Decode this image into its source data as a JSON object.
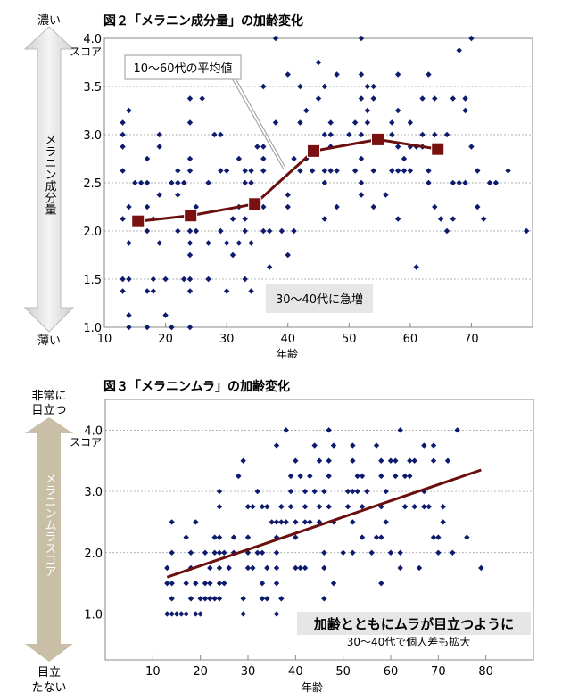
{
  "colors": {
    "point": "#0d1a6e",
    "line": "#6b0e0e",
    "marker": "#7a1010",
    "grid": "#9a9a9a",
    "arrow": "#c9bfa6",
    "label_box": "#e6e6e6"
  },
  "chart_data": [
    {
      "type": "scatter",
      "title": "図２「メラニン成分量」の加齢変化",
      "xlabel": "年齢",
      "ylabel": "メラニン成分量",
      "y_unit": "スコア",
      "y_top_label": "濃い",
      "y_bottom_label": "薄い",
      "xlim": [
        10,
        80
      ],
      "ylim": [
        1.0,
        4.0
      ],
      "x_ticks": [
        "10",
        "20",
        "30",
        "40",
        "50",
        "60",
        "70"
      ],
      "y_ticks": [
        "1.0",
        "1.5",
        "2.0",
        "2.5",
        "3.0",
        "3.5",
        "4.0"
      ],
      "grid": "horizontal dashed",
      "points": [
        [
          13,
          3.125
        ],
        [
          13,
          3.0
        ],
        [
          13,
          2.875
        ],
        [
          13,
          2.625
        ],
        [
          13,
          2.125
        ],
        [
          13,
          1.5
        ],
        [
          13,
          1.375
        ],
        [
          14,
          3.25
        ],
        [
          14,
          2.25
        ],
        [
          14,
          1.875
        ],
        [
          14,
          1.5
        ],
        [
          14,
          1.125
        ],
        [
          14,
          1.0
        ],
        [
          15,
          2.5
        ],
        [
          16,
          2.5
        ],
        [
          17,
          2.75
        ],
        [
          17,
          2.5
        ],
        [
          17,
          2.25
        ],
        [
          17,
          2.0
        ],
        [
          17,
          1.375
        ],
        [
          17,
          1.0
        ],
        [
          18,
          2.125
        ],
        [
          18,
          1.5
        ],
        [
          18,
          1.375
        ],
        [
          19,
          3.0
        ],
        [
          19,
          2.875
        ],
        [
          19,
          2.375
        ],
        [
          19,
          1.875
        ],
        [
          20,
          1.5
        ],
        [
          20,
          1.125
        ],
        [
          21,
          2.5
        ],
        [
          21,
          1.0
        ],
        [
          22,
          2.625
        ],
        [
          22,
          2.5
        ],
        [
          22,
          2.375
        ],
        [
          22,
          2.0
        ],
        [
          23,
          2.5
        ],
        [
          23,
          1.5
        ],
        [
          24,
          3.375
        ],
        [
          24,
          3.125
        ],
        [
          24,
          2.75
        ],
        [
          24,
          2.625
        ],
        [
          24,
          2.0
        ],
        [
          24,
          1.875
        ],
        [
          24,
          1.75
        ],
        [
          24,
          1.5
        ],
        [
          24,
          1.375
        ],
        [
          24,
          1.0
        ],
        [
          25,
          2.25
        ],
        [
          25,
          2.0
        ],
        [
          26,
          3.375
        ],
        [
          27,
          2.5
        ],
        [
          27,
          1.875
        ],
        [
          27,
          1.5
        ],
        [
          28,
          3.0
        ],
        [
          29,
          3.0
        ],
        [
          29,
          2.625
        ],
        [
          29,
          2.0
        ],
        [
          30,
          2.625
        ],
        [
          30,
          1.875
        ],
        [
          30,
          1.375
        ],
        [
          31,
          2.125
        ],
        [
          31,
          1.75
        ],
        [
          32,
          2.75
        ],
        [
          32,
          2.25
        ],
        [
          32,
          1.875
        ],
        [
          33,
          2.625
        ],
        [
          33,
          2.5
        ],
        [
          33,
          2.125
        ],
        [
          33,
          2.0
        ],
        [
          33,
          1.5
        ],
        [
          34,
          2.625
        ],
        [
          34,
          2.5
        ],
        [
          34,
          1.875
        ],
        [
          34,
          1.375
        ],
        [
          35,
          2.875
        ],
        [
          36,
          3.5
        ],
        [
          36,
          2.875
        ],
        [
          36,
          2.75
        ],
        [
          36,
          2.625
        ],
        [
          36,
          2.25
        ],
        [
          36,
          2.0
        ],
        [
          37,
          2.0
        ],
        [
          37,
          1.625
        ],
        [
          38,
          4.0
        ],
        [
          38,
          3.125
        ],
        [
          39,
          2.0
        ],
        [
          40,
          3.625
        ],
        [
          40,
          2.375
        ],
        [
          40,
          2.25
        ],
        [
          40,
          1.75
        ],
        [
          41,
          2.75
        ],
        [
          41,
          2.0
        ],
        [
          42,
          3.5
        ],
        [
          42,
          3.125
        ],
        [
          42,
          2.625
        ],
        [
          43,
          3.25
        ],
        [
          43,
          2.75
        ],
        [
          44,
          2.625
        ],
        [
          45,
          3.75
        ],
        [
          45,
          3.375
        ],
        [
          46,
          3.5
        ],
        [
          46,
          3.0
        ],
        [
          46,
          2.625
        ],
        [
          46,
          2.5
        ],
        [
          46,
          2.125
        ],
        [
          47,
          3.125
        ],
        [
          47,
          3.0
        ],
        [
          47,
          2.875
        ],
        [
          47,
          2.625
        ],
        [
          48,
          3.625
        ],
        [
          48,
          2.625
        ],
        [
          48,
          2.25
        ],
        [
          50,
          3.0
        ],
        [
          51,
          3.125
        ],
        [
          51,
          2.625
        ],
        [
          52,
          4.0
        ],
        [
          52,
          3.625
        ],
        [
          52,
          3.375
        ],
        [
          52,
          3.0
        ],
        [
          52,
          2.75
        ],
        [
          52,
          2.5
        ],
        [
          52,
          2.375
        ],
        [
          53,
          3.5
        ],
        [
          53,
          3.25
        ],
        [
          53,
          3.125
        ],
        [
          54,
          3.5
        ],
        [
          54,
          3.375
        ],
        [
          54,
          2.625
        ],
        [
          54,
          2.25
        ],
        [
          56,
          2.375
        ],
        [
          57,
          3.125
        ],
        [
          57,
          3.0
        ],
        [
          57,
          2.625
        ],
        [
          58,
          3.625
        ],
        [
          58,
          3.25
        ],
        [
          58,
          2.875
        ],
        [
          58,
          2.625
        ],
        [
          58,
          2.125
        ],
        [
          59,
          2.75
        ],
        [
          59,
          2.625
        ],
        [
          60,
          3.125
        ],
        [
          60,
          2.875
        ],
        [
          60,
          2.625
        ],
        [
          61,
          2.875
        ],
        [
          61,
          1.625
        ],
        [
          62,
          3.375
        ],
        [
          62,
          3.0
        ],
        [
          62,
          2.875
        ],
        [
          63,
          3.625
        ],
        [
          63,
          2.625
        ],
        [
          63,
          2.5
        ],
        [
          64,
          3.375
        ],
        [
          64,
          3.0
        ],
        [
          64,
          2.25
        ],
        [
          65,
          2.125
        ],
        [
          66,
          3.0
        ],
        [
          66,
          2.0
        ],
        [
          67,
          3.375
        ],
        [
          67,
          2.5
        ],
        [
          67,
          2.125
        ],
        [
          68,
          3.875
        ],
        [
          68,
          2.5
        ],
        [
          69,
          3.375
        ],
        [
          69,
          3.25
        ],
        [
          69,
          2.5
        ],
        [
          70,
          4.0
        ],
        [
          70,
          2.875
        ],
        [
          71,
          2.625
        ],
        [
          71,
          2.25
        ],
        [
          72,
          2.125
        ],
        [
          73,
          2.5
        ],
        [
          74,
          2.5
        ],
        [
          76,
          2.625
        ],
        [
          79,
          2.0
        ]
      ],
      "mean_series": {
        "name": "10～60代の平均値",
        "x": [
          15.5,
          24.1,
          34.6,
          44.2,
          54.7,
          64.5
        ],
        "y": [
          2.1,
          2.16,
          2.28,
          2.83,
          2.95,
          2.85
        ]
      },
      "annotations": [
        "30～40代に急増"
      ]
    },
    {
      "type": "scatter",
      "title": "図３「メラニンムラ」の加齢変化",
      "xlabel": "年齢",
      "ylabel": "メラニンムラスコア",
      "y_unit": "スコア",
      "y_top_label": [
        "非常に",
        "目立つ"
      ],
      "y_bottom_label": [
        "目立",
        "たない"
      ],
      "xlim": [
        0,
        90
      ],
      "ylim": [
        0.25,
        4.5
      ],
      "x_ticks": [
        "10",
        "20",
        "30",
        "40",
        "50",
        "60",
        "70",
        "80"
      ],
      "y_ticks": [
        "1.0",
        "2.0",
        "3.0",
        "4.0"
      ],
      "grid": "horizontal dashed",
      "points": [
        [
          13,
          1.75
        ],
        [
          13,
          1.5
        ],
        [
          13,
          1.0
        ],
        [
          14,
          2.5
        ],
        [
          14,
          2.0
        ],
        [
          14,
          1.5
        ],
        [
          14,
          1.25
        ],
        [
          14,
          1.0
        ],
        [
          15,
          1.0
        ],
        [
          16,
          1.0
        ],
        [
          17,
          2.25
        ],
        [
          17,
          1.5
        ],
        [
          17,
          1.0
        ],
        [
          18,
          2.0
        ],
        [
          18,
          1.75
        ],
        [
          18,
          1.25
        ],
        [
          19,
          2.5
        ],
        [
          19,
          1.5
        ],
        [
          19,
          1.0
        ],
        [
          20,
          1.25
        ],
        [
          20,
          1.0
        ],
        [
          21,
          2.0
        ],
        [
          21,
          1.5
        ],
        [
          21,
          1.25
        ],
        [
          22,
          1.75
        ],
        [
          22,
          1.5
        ],
        [
          22,
          1.25
        ],
        [
          23,
          2.25
        ],
        [
          23,
          2.0
        ],
        [
          23,
          1.25
        ],
        [
          24,
          3.0
        ],
        [
          24,
          2.75
        ],
        [
          24,
          2.25
        ],
        [
          24,
          2.0
        ],
        [
          24,
          1.75
        ],
        [
          24,
          1.5
        ],
        [
          24,
          1.25
        ],
        [
          25,
          2.0
        ],
        [
          25,
          1.5
        ],
        [
          26,
          1.75
        ],
        [
          27,
          2.25
        ],
        [
          27,
          2.0
        ],
        [
          28,
          3.25
        ],
        [
          29,
          3.5
        ],
        [
          29,
          1.25
        ],
        [
          29,
          1.0
        ],
        [
          30,
          2.75
        ],
        [
          30,
          2.25
        ],
        [
          30,
          2.0
        ],
        [
          30,
          1.75
        ],
        [
          31,
          2.75
        ],
        [
          31,
          1.75
        ],
        [
          32,
          3.0
        ],
        [
          32,
          2.0
        ],
        [
          33,
          2.75
        ],
        [
          33,
          2.0
        ],
        [
          33,
          1.5
        ],
        [
          33,
          1.25
        ],
        [
          34,
          2.75
        ],
        [
          34,
          1.75
        ],
        [
          34,
          1.25
        ],
        [
          35,
          2.5
        ],
        [
          36,
          3.75
        ],
        [
          36,
          2.5
        ],
        [
          36,
          2.25
        ],
        [
          36,
          2.0
        ],
        [
          36,
          1.75
        ],
        [
          36,
          1.5
        ],
        [
          36,
          1.0
        ],
        [
          37,
          2.75
        ],
        [
          37,
          2.5
        ],
        [
          37,
          1.25
        ],
        [
          38,
          4.0
        ],
        [
          38,
          2.5
        ],
        [
          39,
          3.25
        ],
        [
          39,
          3.0
        ],
        [
          39,
          2.75
        ],
        [
          40,
          3.5
        ],
        [
          40,
          2.5
        ],
        [
          40,
          2.25
        ],
        [
          40,
          1.75
        ],
        [
          41,
          3.25
        ],
        [
          41,
          1.75
        ],
        [
          42,
          3.0
        ],
        [
          42,
          2.75
        ],
        [
          42,
          2.5
        ],
        [
          42,
          1.75
        ],
        [
          43,
          3.25
        ],
        [
          43,
          2.5
        ],
        [
          44,
          3.75
        ],
        [
          44,
          3.0
        ],
        [
          45,
          3.5
        ],
        [
          45,
          2.75
        ],
        [
          45,
          2.5
        ],
        [
          46,
          3.0
        ],
        [
          46,
          2.0
        ],
        [
          46,
          1.75
        ],
        [
          46,
          1.25
        ],
        [
          47,
          4.0
        ],
        [
          47,
          3.5
        ],
        [
          47,
          3.25
        ],
        [
          47,
          2.75
        ],
        [
          48,
          3.75
        ],
        [
          48,
          2.5
        ],
        [
          48,
          1.5
        ],
        [
          50,
          2.0
        ],
        [
          51,
          3.0
        ],
        [
          51,
          2.75
        ],
        [
          52,
          3.75
        ],
        [
          52,
          3.5
        ],
        [
          52,
          3.0
        ],
        [
          52,
          2.5
        ],
        [
          52,
          2.0
        ],
        [
          53,
          3.25
        ],
        [
          53,
          3.0
        ],
        [
          54,
          3.25
        ],
        [
          54,
          2.75
        ],
        [
          54,
          2.25
        ],
        [
          55,
          3.0
        ],
        [
          56,
          2.0
        ],
        [
          57,
          3.75
        ],
        [
          57,
          2.25
        ],
        [
          58,
          3.5
        ],
        [
          58,
          3.25
        ],
        [
          58,
          2.75
        ],
        [
          58,
          2.25
        ],
        [
          58,
          1.5
        ],
        [
          59,
          3.0
        ],
        [
          59,
          2.5
        ],
        [
          60,
          3.5
        ],
        [
          60,
          2.0
        ],
        [
          61,
          3.5
        ],
        [
          61,
          3.25
        ],
        [
          62,
          4.0
        ],
        [
          62,
          2.0
        ],
        [
          62,
          1.75
        ],
        [
          63,
          3.25
        ],
        [
          63,
          2.75
        ],
        [
          64,
          3.5
        ],
        [
          64,
          3.25
        ],
        [
          65,
          3.5
        ],
        [
          65,
          2.75
        ],
        [
          66,
          1.75
        ],
        [
          67,
          3.75
        ],
        [
          67,
          3.0
        ],
        [
          67,
          2.75
        ],
        [
          68,
          2.75
        ],
        [
          69,
          3.75
        ],
        [
          69,
          3.5
        ],
        [
          69,
          2.25
        ],
        [
          70,
          2.25
        ],
        [
          70,
          2.0
        ],
        [
          71,
          2.75
        ],
        [
          71,
          2.5
        ],
        [
          72,
          3.5
        ],
        [
          73,
          2.0
        ],
        [
          74,
          4.0
        ],
        [
          76,
          2.25
        ],
        [
          79,
          1.75
        ]
      ],
      "trend_line": {
        "x": [
          13,
          79
        ],
        "y": [
          1.6,
          3.35
        ]
      },
      "annotations": [
        "加齢とともにムラが目立つように",
        "30～40代で個人差も拡大"
      ]
    }
  ]
}
